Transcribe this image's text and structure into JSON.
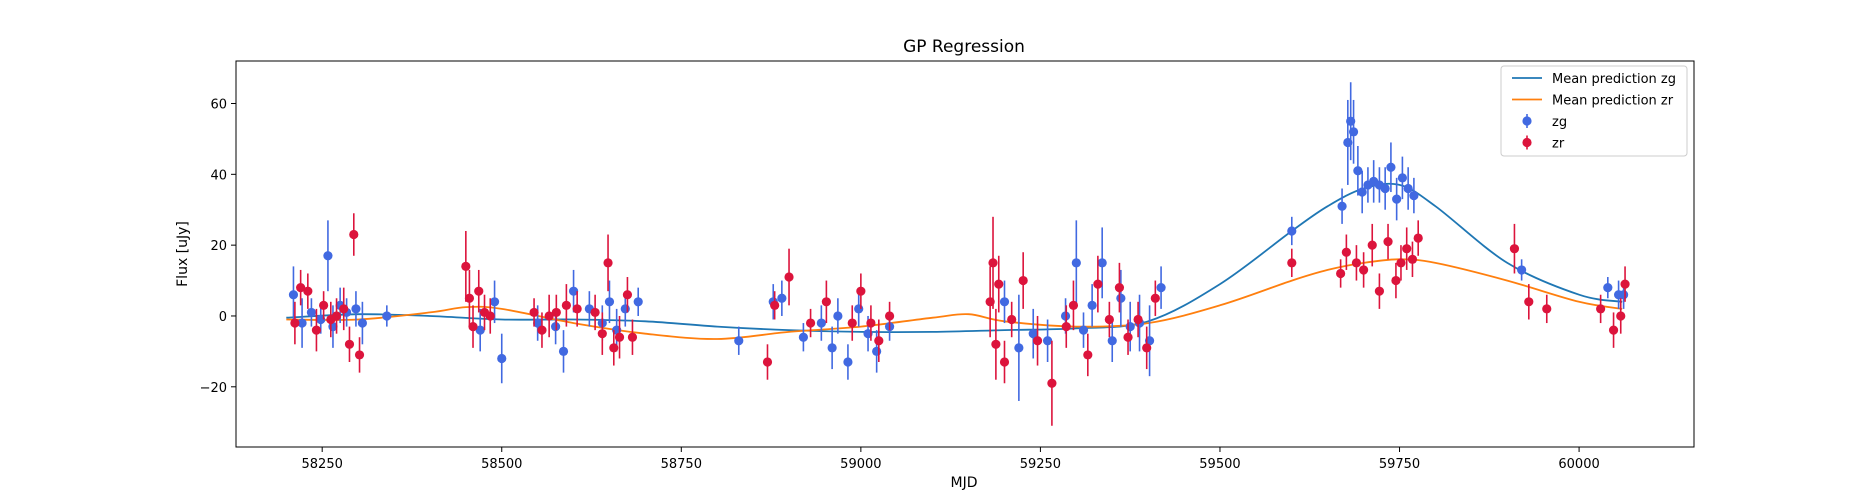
{
  "chart_data": {
    "type": "scatter",
    "title": "GP Regression",
    "xlabel": "MJD",
    "ylabel": "Flux [uJy]",
    "xlim": [
      58130,
      60160
    ],
    "ylim": [
      -37,
      72
    ],
    "xticks": [
      58250,
      58500,
      58750,
      59000,
      59250,
      59500,
      59750,
      60000
    ],
    "yticks": [
      -20,
      0,
      20,
      40,
      60
    ],
    "grid": false,
    "legend_position": "top-right",
    "colors": {
      "zg": "#4169e1",
      "zr": "#dc143c",
      "mean_zg": "#1f77b4",
      "mean_zr": "#ff7f0e"
    },
    "series": [
      {
        "name": "Mean prediction zg",
        "type": "line",
        "x": [
          58200,
          58300,
          58400,
          58500,
          58600,
          58700,
          58800,
          58900,
          59000,
          59100,
          59200,
          59300,
          59400,
          59500,
          59600,
          59650,
          59700,
          59750,
          59800,
          59900,
          60000,
          60060
        ],
        "y": [
          -0.5,
          0.5,
          0,
          -1,
          -1,
          -1.5,
          -3,
          -4,
          -4.5,
          -4.5,
          -4,
          -3.5,
          -1.5,
          9,
          24,
          31,
          36,
          37,
          31,
          15,
          6,
          4
        ]
      },
      {
        "name": "Mean prediction zr",
        "type": "line",
        "x": [
          58200,
          58300,
          58400,
          58450,
          58500,
          58600,
          58700,
          58800,
          58900,
          59000,
          59100,
          59150,
          59200,
          59300,
          59400,
          59500,
          59600,
          59650,
          59700,
          59750,
          59800,
          59900,
          60000,
          60060
        ],
        "y": [
          -1,
          -1,
          1,
          2.5,
          2,
          -2,
          -5,
          -6.5,
          -4.5,
          -3,
          -0.5,
          0.5,
          -1.5,
          -3,
          -2,
          3,
          10,
          13,
          15,
          16,
          15,
          10,
          4,
          2
        ]
      },
      {
        "name": "zg",
        "type": "errorbar",
        "x": [
          58210,
          58222,
          58235,
          58248,
          58258,
          58265,
          58275,
          58284,
          58297,
          58306,
          58340,
          58470,
          58490,
          58500,
          58550,
          58575,
          58586,
          58600,
          58622,
          58640,
          58650,
          58660,
          58672,
          58690,
          58830,
          58878,
          58890,
          58920,
          58945,
          58960,
          58968,
          58982,
          58997,
          59010,
          59022,
          59040,
          59200,
          59220,
          59240,
          59260,
          59285,
          59300,
          59310,
          59322,
          59336,
          59350,
          59362,
          59375,
          59388,
          59402,
          59418,
          59600,
          59670,
          59678,
          59682,
          59686,
          59692,
          59698,
          59706,
          59714,
          59722,
          59730,
          59738,
          59746,
          59754,
          59762,
          59770,
          59920,
          60040,
          60055,
          60062
        ],
        "y": [
          6,
          -2,
          1,
          -1,
          17,
          -3,
          3,
          1,
          2,
          -2,
          0,
          -4,
          4,
          -12,
          -2,
          -3,
          -10,
          7,
          2,
          -2,
          4,
          -4,
          2,
          4,
          -7,
          4,
          5,
          -6,
          -2,
          -9,
          0,
          -13,
          2,
          -5,
          -10,
          -3,
          4,
          -9,
          -5,
          -7,
          0,
          15,
          -4,
          3,
          15,
          -7,
          5,
          -3,
          -2,
          -7,
          8,
          24,
          31,
          49,
          55,
          52,
          41,
          35,
          37,
          38,
          37,
          36,
          42,
          33,
          39,
          36,
          34,
          13,
          8,
          6,
          6
        ],
        "yerr": [
          8,
          7,
          4,
          4,
          10,
          6,
          5,
          4,
          5,
          6,
          3,
          6,
          6,
          7,
          5,
          5,
          6,
          6,
          5,
          5,
          6,
          6,
          5,
          4,
          4,
          5,
          5,
          4,
          5,
          6,
          5,
          5,
          5,
          5,
          6,
          4,
          6,
          15,
          7,
          6,
          5,
          12,
          5,
          6,
          10,
          6,
          8,
          7,
          8,
          10,
          6,
          4,
          5,
          12,
          11,
          9,
          7,
          6,
          5,
          6,
          5,
          6,
          7,
          6,
          6,
          6,
          5,
          3,
          3,
          4,
          4
        ]
      },
      {
        "name": "zr",
        "type": "errorbar",
        "x": [
          58212,
          58220,
          58230,
          58242,
          58252,
          58262,
          58270,
          58280,
          58288,
          58294,
          58302,
          58450,
          58455,
          58460,
          58468,
          58476,
          58484,
          58545,
          58556,
          58566,
          58576,
          58590,
          58605,
          58630,
          58640,
          58648,
          58656,
          58664,
          58675,
          58682,
          58870,
          58880,
          58900,
          58930,
          58952,
          58988,
          59000,
          59014,
          59025,
          59040,
          59180,
          59184,
          59188,
          59192,
          59200,
          59210,
          59226,
          59246,
          59266,
          59286,
          59296,
          59316,
          59330,
          59346,
          59360,
          59372,
          59386,
          59398,
          59410,
          59600,
          59668,
          59676,
          59690,
          59700,
          59712,
          59722,
          59734,
          59745,
          59752,
          59760,
          59768,
          59776,
          59910,
          59930,
          59955,
          60030,
          60048,
          60058,
          60064
        ],
        "y": [
          -2,
          8,
          7,
          -4,
          3,
          -1,
          0,
          2,
          -8,
          23,
          -11,
          14,
          5,
          -3,
          7,
          1,
          0,
          1,
          -4,
          0,
          1,
          3,
          2,
          1,
          -5,
          15,
          -9,
          -6,
          6,
          -6,
          -13,
          3,
          11,
          -2,
          4,
          -2,
          7,
          -2,
          -7,
          0,
          4,
          15,
          -8,
          9,
          -13,
          -1,
          10,
          -7,
          -19,
          -3,
          3,
          -11,
          9,
          -1,
          8,
          -6,
          -1,
          -9,
          5,
          15,
          12,
          18,
          15,
          13,
          20,
          7,
          21,
          10,
          15,
          19,
          16,
          22,
          19,
          4,
          2,
          2,
          -4,
          0,
          9
        ],
        "yerr": [
          6,
          5,
          5,
          6,
          4,
          5,
          5,
          6,
          5,
          6,
          5,
          10,
          8,
          6,
          6,
          5,
          5,
          4,
          5,
          6,
          5,
          6,
          5,
          5,
          6,
          8,
          5,
          6,
          5,
          5,
          5,
          4,
          8,
          4,
          6,
          5,
          5,
          5,
          6,
          4,
          10,
          13,
          10,
          8,
          6,
          5,
          8,
          7,
          12,
          6,
          7,
          6,
          8,
          5,
          7,
          5,
          5,
          6,
          5,
          4,
          4,
          5,
          5,
          5,
          6,
          5,
          5,
          5,
          5,
          6,
          5,
          5,
          7,
          5,
          4,
          4,
          5,
          5,
          5
        ]
      }
    ]
  }
}
